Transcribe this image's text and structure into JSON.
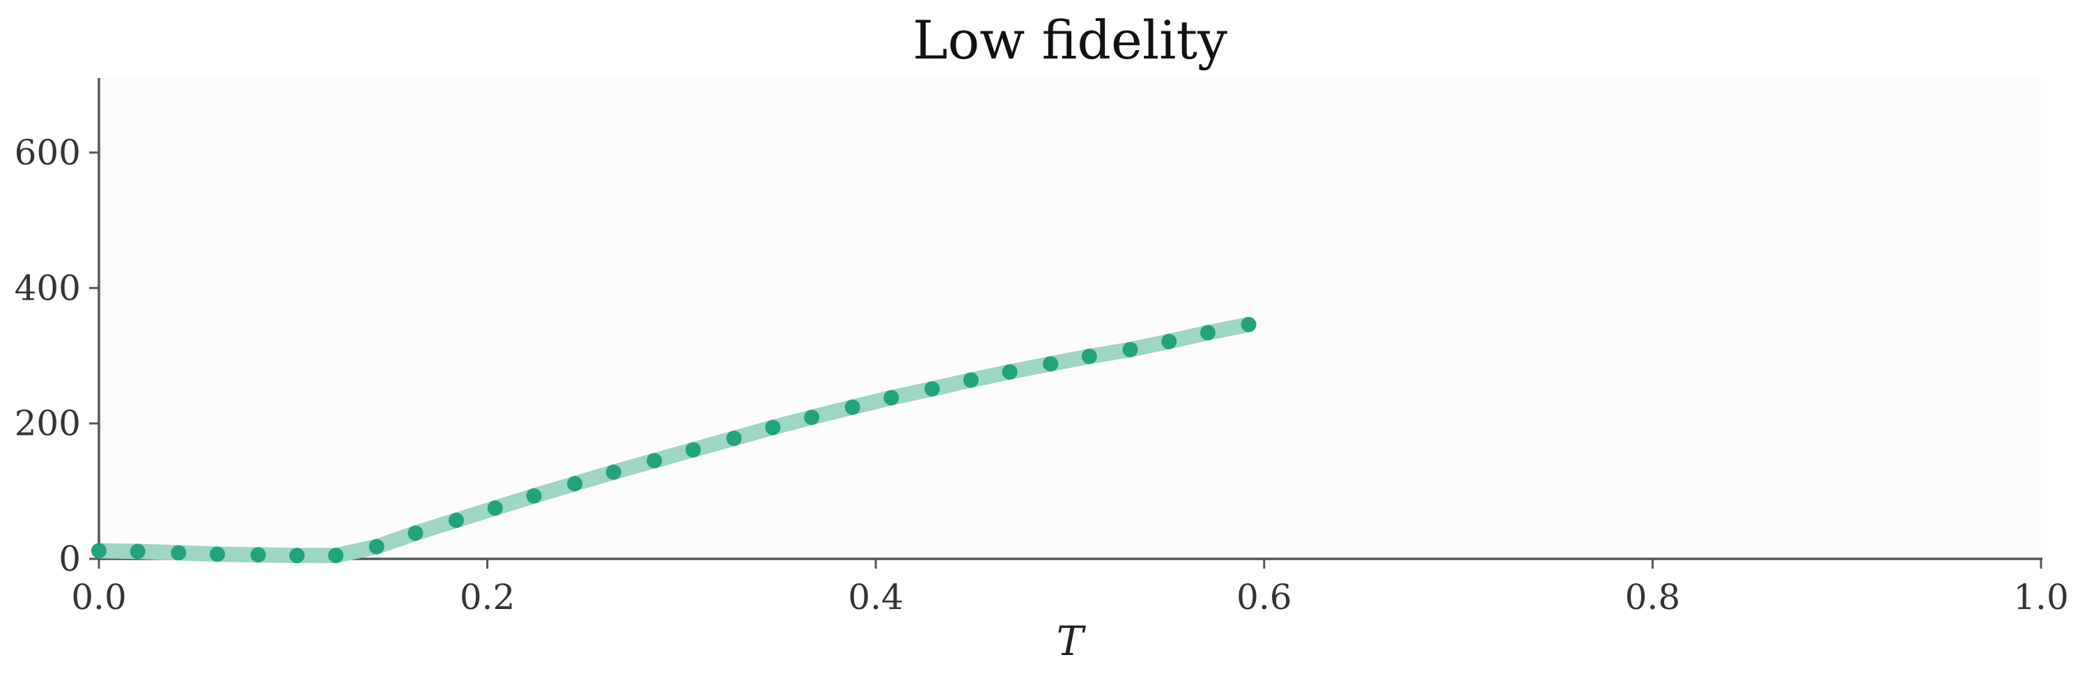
{
  "chart_data": {
    "type": "line",
    "title": "Low fidelity",
    "xlabel": "T",
    "ylabel": "",
    "xlim": [
      0.0,
      1.0
    ],
    "ylim": [
      0,
      710
    ],
    "xticks": [
      0.0,
      0.2,
      0.4,
      0.6,
      0.8,
      1.0
    ],
    "xtick_labels": [
      "0.0",
      "0.2",
      "0.4",
      "0.6",
      "0.8",
      "1.0"
    ],
    "yticks": [
      0,
      200,
      400,
      600
    ],
    "ytick_labels": [
      "0",
      "200",
      "400",
      "600"
    ],
    "grid": false,
    "legend": "none",
    "colors": {
      "line": "#9dd6c4",
      "marker": "#21a37c",
      "plot_background": "#fcfcfc",
      "axis": "#555555"
    },
    "series": [
      {
        "x": [
          0.0,
          0.02,
          0.041,
          0.061,
          0.082,
          0.102,
          0.122,
          0.143,
          0.163,
          0.184,
          0.204,
          0.224,
          0.245,
          0.265,
          0.286,
          0.306,
          0.327,
          0.347,
          0.367,
          0.388,
          0.408,
          0.429,
          0.449,
          0.469,
          0.49,
          0.51,
          0.531,
          0.551,
          0.571,
          0.592
        ],
        "y": [
          12,
          11,
          9,
          7,
          6,
          5,
          5,
          18,
          38,
          57,
          75,
          93,
          111,
          128,
          145,
          161,
          178,
          194,
          209,
          224,
          238,
          251,
          264,
          276,
          288,
          299,
          309,
          321,
          334,
          346
        ]
      }
    ]
  }
}
